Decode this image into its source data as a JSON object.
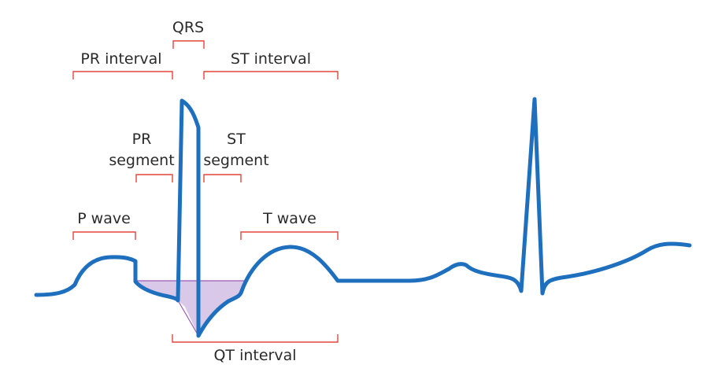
{
  "colors": {
    "trace": "#1f6fbf",
    "bracket": "#e0473a",
    "shade_fill": "#d9c8e8",
    "shade_stroke": "#9b59b6",
    "text": "#2b2b2b"
  },
  "labels": {
    "qrs": "QRS",
    "pr_interval": "PR interval",
    "st_interval": "ST interval",
    "pr_segment_line1": "PR",
    "pr_segment_line2": "segment",
    "st_segment_line1": "ST",
    "st_segment_line2": "segment",
    "p_wave": "P wave",
    "t_wave": "T wave",
    "qt_interval": "QT interval"
  }
}
